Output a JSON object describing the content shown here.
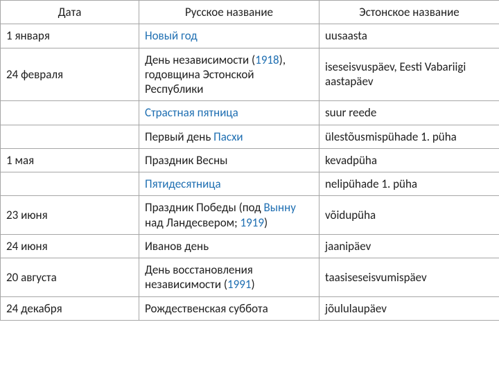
{
  "table": {
    "headers": [
      "Дата",
      "Русское название",
      "Эстонское название"
    ],
    "link_color": "#1f6fb2",
    "text_color": "#202020",
    "border_color": "#a6a6a6",
    "rows": [
      {
        "date": "1 января",
        "ru_plain_pre": "",
        "ru_link1": "Новый год",
        "ru_plain_mid": "",
        "ru_link2": "",
        "ru_plain_post": "",
        "et": "uusaasta"
      },
      {
        "date": "24 февраля",
        "ru_plain_pre": "День независимости (",
        "ru_link1": "1918",
        "ru_plain_mid": "), годовщина Эстонской Республики",
        "ru_link2": "",
        "ru_plain_post": "",
        "et": "iseseisvuspäev, Eesti Vabariigi aastapäev"
      },
      {
        "date": "",
        "ru_plain_pre": "",
        "ru_link1": "Страстная пятница",
        "ru_plain_mid": "",
        "ru_link2": "",
        "ru_plain_post": "",
        "et": "suur reede"
      },
      {
        "date": "",
        "ru_plain_pre": "Первый день ",
        "ru_link1": "Пасхи",
        "ru_plain_mid": "",
        "ru_link2": "",
        "ru_plain_post": "",
        "et": "ülestõusmispühade 1. püha"
      },
      {
        "date": "1 мая",
        "ru_plain_pre": "Праздник Весны",
        "ru_link1": "",
        "ru_plain_mid": "",
        "ru_link2": "",
        "ru_plain_post": "",
        "et": "kevadpüha"
      },
      {
        "date": "",
        "ru_plain_pre": "",
        "ru_link1": "Пятидесятница",
        "ru_plain_mid": "",
        "ru_link2": "",
        "ru_plain_post": "",
        "et": "nelipühade 1. püha"
      },
      {
        "date": "23 июня",
        "ru_plain_pre": "Праздник Победы (под ",
        "ru_link1": "Вынну",
        "ru_plain_mid": " над Ландесвером; ",
        "ru_link2": "1919",
        "ru_plain_post": ")",
        "et": "võidupüha"
      },
      {
        "date": "24 июня",
        "ru_plain_pre": "Иванов день",
        "ru_link1": "",
        "ru_plain_mid": "",
        "ru_link2": "",
        "ru_plain_post": "",
        "et": "jaanipäev"
      },
      {
        "date": "20 августа",
        "ru_plain_pre": "День восстановления независимости (",
        "ru_link1": "1991",
        "ru_plain_mid": ")",
        "ru_link2": "",
        "ru_plain_post": "",
        "et": "taasiseseisvumispäev"
      },
      {
        "date": "24 декабря",
        "ru_plain_pre": "Рождественская суббота",
        "ru_link1": "",
        "ru_plain_mid": "",
        "ru_link2": "",
        "ru_plain_post": "",
        "et": "jõululaupäev"
      }
    ]
  }
}
